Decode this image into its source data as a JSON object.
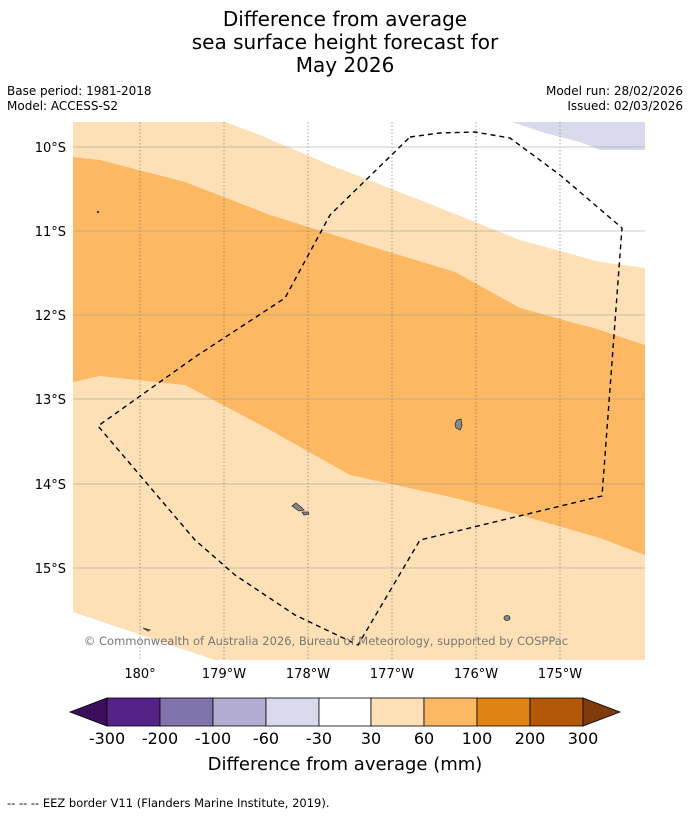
{
  "title": {
    "line1": "Difference from average",
    "line2": "sea surface height forecast for",
    "line3": "May 2026"
  },
  "meta": {
    "base_period": "Base period: 1981-2018",
    "model": "Model: ACCESS-S2",
    "model_run": "Model run: 28/02/2026",
    "issued": "Issued: 02/03/2026"
  },
  "map": {
    "lat_labels": [
      "10°S",
      "11°S",
      "12°S",
      "13°S",
      "14°S",
      "15°S"
    ],
    "lon_labels": [
      "180°",
      "179°W",
      "178°W",
      "177°W",
      "176°W",
      "175°W"
    ],
    "copyright": "© Commonwealth of Australia 2026, Bureau of Meteorology, supported by COSPPac",
    "eez_note": "--  --  -- EEZ border V11 (Flanders Marine Institute, 2019)."
  },
  "colorbar": {
    "ticks": [
      "-300",
      "-200",
      "-100",
      "-60",
      "-30",
      "30",
      "60",
      "100",
      "200",
      "300"
    ],
    "label": "Difference from average (mm)",
    "colors": {
      "below_min": "#3d0e5e",
      "c1": "#542388",
      "c2": "#8073ac",
      "c3": "#b2abd2",
      "c4": "#d8daeb",
      "c5": "#ffffff",
      "c6": "#fee0b6",
      "c7": "#fdb863",
      "c8": "#e08214",
      "c9": "#b35806",
      "above_max": "#7f3b08"
    }
  }
}
